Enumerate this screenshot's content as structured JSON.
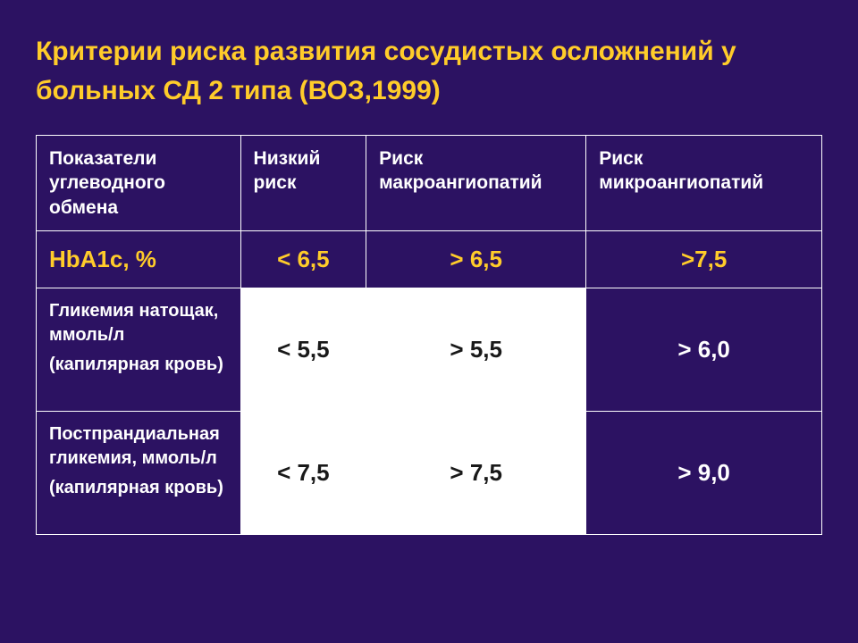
{
  "title": "Критерии риска развития сосудистых осложнений у больных СД 2 типа (ВОЗ,1999)",
  "columns": {
    "c0": "Показатели углеводного обмена",
    "c1": "Низкий риск",
    "c2": "Риск макроангиопатий",
    "c3": "Риск микроангиопатий"
  },
  "rows": {
    "hba": {
      "label": "HbA1c, %",
      "low": "< 6,5",
      "macro": "> 6,5",
      "micro": ">7,5"
    },
    "fast": {
      "label": "Гликемия натощак, ммоль/л\n(капилярная кровь)",
      "low": "< 5,5",
      "macro": "> 5,5",
      "micro": "> 6,0"
    },
    "post": {
      "label": "Постпрандиальная гликемия, ммоль/л\n(капилярная кровь)",
      "low": "< 7,5",
      "macro": "> 7,5",
      "micro": "> 9,0"
    }
  },
  "style": {
    "background_color": "#2c1262",
    "title_color": "#ffcc2a",
    "title_fontsize_pt": 22,
    "header_text_color": "#ffffff",
    "header_fontsize_pt": 16,
    "border_color": "#ffffff",
    "highlight_row_color": "#ffcc2a",
    "white_cell_bg": "#ffffff",
    "white_cell_text": "#191919",
    "purple_cell_text": "#ffffff",
    "value_fontsize_pt": 20,
    "label_fontsize_pt": 15,
    "column_widths_pct": [
      26,
      16,
      28,
      30
    ],
    "white_cells": [
      "fast.low",
      "fast.macro",
      "post.low",
      "post.macro"
    ]
  }
}
